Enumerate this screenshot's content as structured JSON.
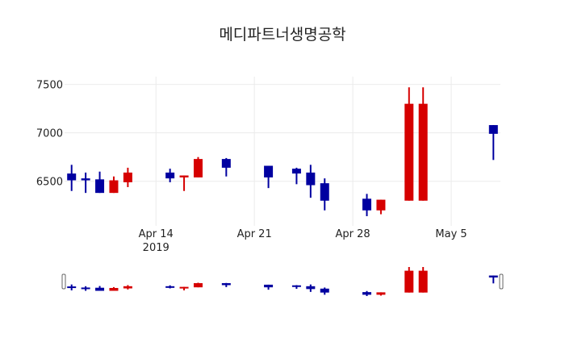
{
  "chart_data": {
    "type": "candlestick",
    "title": "메디파트너생명공학",
    "xlabel": "",
    "ylabel": "",
    "x_ticks": [
      {
        "date": "2019-04-14",
        "label": "Apr 14",
        "sublabel": "2019"
      },
      {
        "date": "2019-04-21",
        "label": "Apr 21"
      },
      {
        "date": "2019-04-28",
        "label": "Apr 28"
      },
      {
        "date": "2019-05-05",
        "label": "May 5"
      }
    ],
    "y_ticks": [
      6500,
      7000,
      7500
    ],
    "xlim": [
      "2019-04-07T12:00",
      "2019-05-08T12:00"
    ],
    "ylim": [
      6040,
      7580
    ],
    "grid": true,
    "rangeslider": true,
    "increasing_color": "#d60000",
    "decreasing_color": "#0000a0",
    "data": [
      {
        "date": "2019-04-08",
        "open": 6580,
        "high": 6670,
        "low": 6400,
        "close": 6510
      },
      {
        "date": "2019-04-09",
        "open": 6530,
        "high": 6590,
        "low": 6380,
        "close": 6510
      },
      {
        "date": "2019-04-10",
        "open": 6520,
        "high": 6600,
        "low": 6380,
        "close": 6380
      },
      {
        "date": "2019-04-11",
        "open": 6380,
        "high": 6550,
        "low": 6380,
        "close": 6510
      },
      {
        "date": "2019-04-12",
        "open": 6490,
        "high": 6640,
        "low": 6440,
        "close": 6590
      },
      {
        "date": "2019-04-15",
        "open": 6590,
        "high": 6630,
        "low": 6490,
        "close": 6530
      },
      {
        "date": "2019-04-16",
        "open": 6540,
        "high": 6560,
        "low": 6400,
        "close": 6560
      },
      {
        "date": "2019-04-17",
        "open": 6540,
        "high": 6750,
        "low": 6540,
        "close": 6730
      },
      {
        "date": "2019-04-19",
        "open": 6730,
        "high": 6740,
        "low": 6550,
        "close": 6640
      },
      {
        "date": "2019-04-22",
        "open": 6660,
        "high": 6660,
        "low": 6430,
        "close": 6540
      },
      {
        "date": "2019-04-24",
        "open": 6630,
        "high": 6640,
        "low": 6470,
        "close": 6580
      },
      {
        "date": "2019-04-25",
        "open": 6590,
        "high": 6670,
        "low": 6330,
        "close": 6460
      },
      {
        "date": "2019-04-26",
        "open": 6480,
        "high": 6530,
        "low": 6200,
        "close": 6300
      },
      {
        "date": "2019-04-29",
        "open": 6320,
        "high": 6370,
        "low": 6140,
        "close": 6200
      },
      {
        "date": "2019-04-30",
        "open": 6200,
        "high": 6310,
        "low": 6160,
        "close": 6310
      },
      {
        "date": "2019-05-02",
        "open": 6300,
        "high": 7470,
        "low": 6300,
        "close": 7300
      },
      {
        "date": "2019-05-03",
        "open": 6300,
        "high": 7470,
        "low": 6300,
        "close": 7300
      },
      {
        "date": "2019-05-08",
        "open": 7080,
        "high": 7080,
        "low": 6720,
        "close": 6990
      }
    ]
  }
}
